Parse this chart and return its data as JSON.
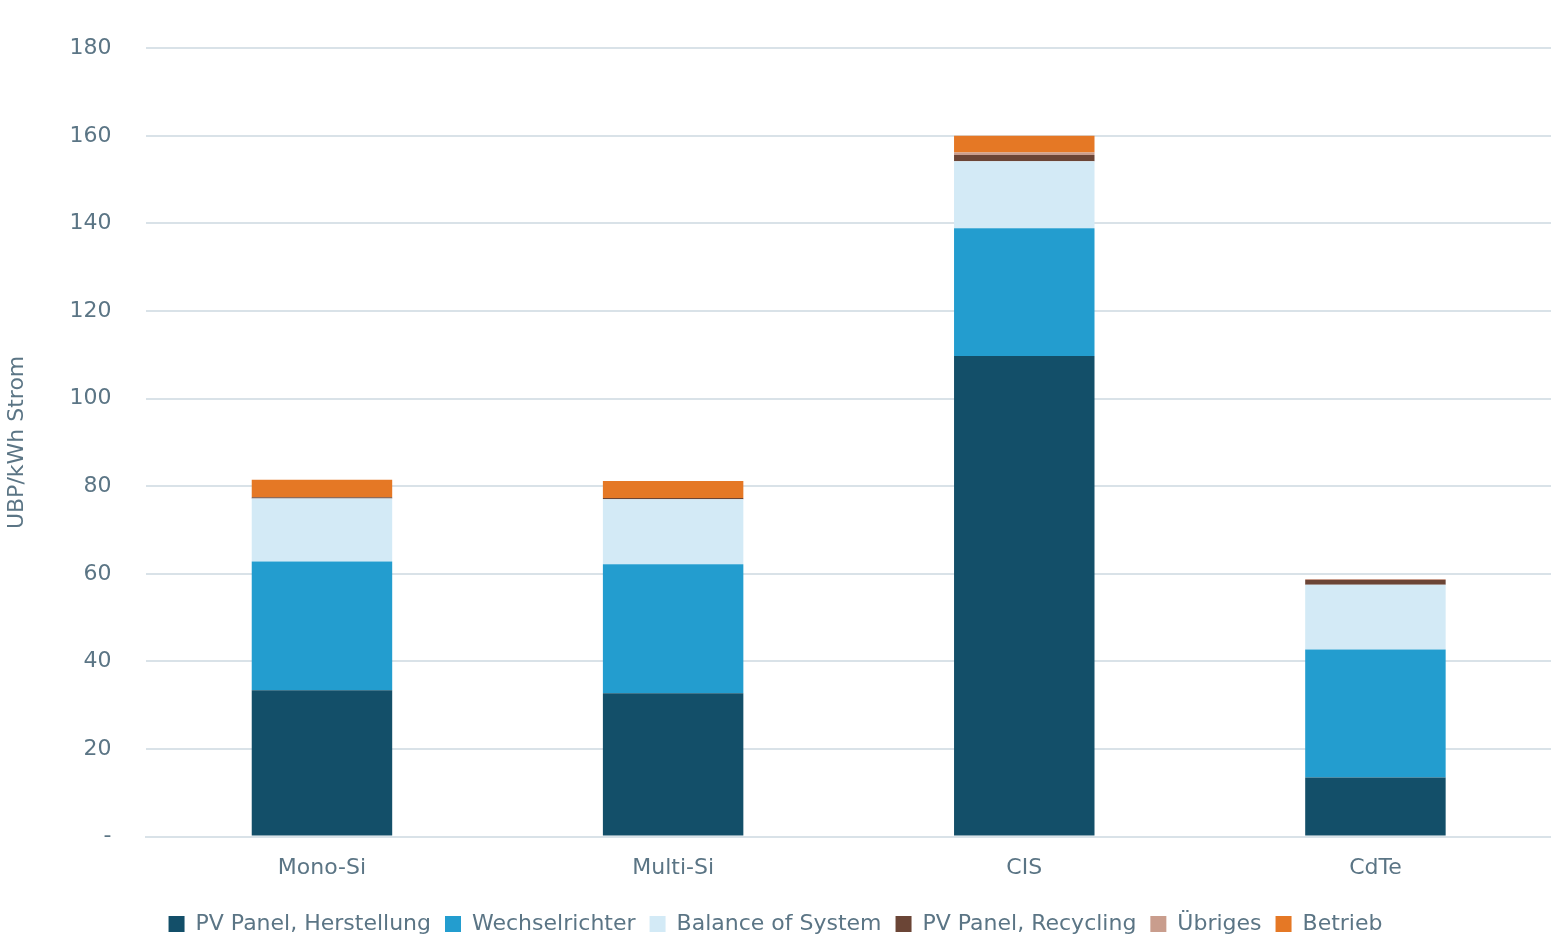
{
  "chart_data": {
    "type": "bar",
    "stacked": true,
    "ylabel": "UBP/kWh Strom",
    "categories": [
      "Mono-Si",
      "Multi-Si",
      "CIS",
      "CdTe"
    ],
    "series": [
      {
        "name": "PV Panel, Herstellung",
        "color": "#134f69",
        "values": [
          33.4,
          32.7,
          109.7,
          13.5
        ]
      },
      {
        "name": "Wechselrichter",
        "color": "#239dcf",
        "values": [
          29.4,
          29.5,
          29.2,
          29.2
        ]
      },
      {
        "name": "Balance of System",
        "color": "#d3eaf6",
        "values": [
          14.4,
          14.8,
          15.3,
          14.8
        ]
      },
      {
        "name": "PV Panel, Recycling",
        "color": "#6b4536",
        "values": [
          0.3,
          0.3,
          1.4,
          1.1
        ]
      },
      {
        "name": "Übriges",
        "color": "#c99d8d",
        "values": [
          null,
          null,
          0.6,
          0.2
        ]
      },
      {
        "name": "Betrieb",
        "color": "#e57825",
        "values": [
          4.0,
          3.9,
          3.8,
          0
        ]
      }
    ],
    "ylim": [
      0,
      180
    ],
    "yticks": [
      {
        "value": 0,
        "label": "-"
      },
      20,
      40,
      60,
      80,
      100,
      120,
      140,
      160,
      180
    ],
    "grid": "y",
    "legend": "bottom"
  }
}
